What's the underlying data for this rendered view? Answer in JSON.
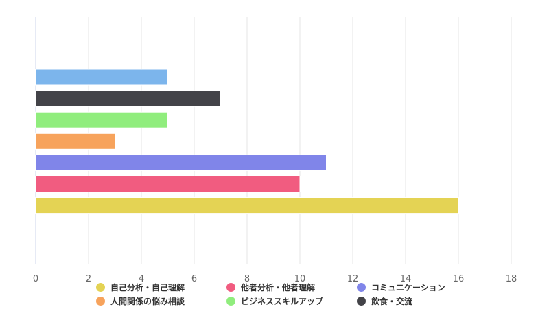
{
  "chart_data": {
    "type": "bar",
    "orientation": "horizontal",
    "xlim": [
      0,
      18
    ],
    "ticks": [
      0,
      2,
      4,
      6,
      8,
      10,
      12,
      14,
      16,
      18
    ],
    "grid": true,
    "legend_placement": "bottom",
    "series": [
      {
        "color": "#7cb5ec",
        "value": 5,
        "in_legend": false
      },
      {
        "name": "飲食・交流",
        "color": "#434348",
        "value": 7
      },
      {
        "name": "ビジネススキルアップ",
        "color": "#90ed7d",
        "value": 5
      },
      {
        "name": "人間関係の悩み相談",
        "color": "#f7a35c",
        "value": 3
      },
      {
        "name": "コミュニケーション",
        "color": "#8085e9",
        "value": 11
      },
      {
        "name": "他者分析・他者理解",
        "color": "#f15c80",
        "value": 10
      },
      {
        "name": "自己分析・自己理解",
        "color": "#e4d354",
        "value": 16
      }
    ],
    "legend_order": [
      6,
      5,
      4,
      3,
      2,
      1
    ]
  }
}
